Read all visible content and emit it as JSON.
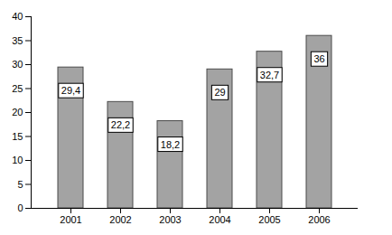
{
  "chart_data": {
    "type": "bar",
    "categories": [
      "2001",
      "2002",
      "2003",
      "2004",
      "2005",
      "2006"
    ],
    "values": [
      29.4,
      22.2,
      18.2,
      29,
      32.7,
      36
    ],
    "value_labels": [
      "29,4",
      "22,2",
      "18,2",
      "29",
      "32,7",
      "36"
    ],
    "color": "#a3a3a3",
    "ylim": [
      0,
      40
    ],
    "yticks": [
      0,
      5,
      10,
      15,
      20,
      25,
      30,
      35,
      40
    ],
    "grid": false,
    "data_labels": true
  }
}
